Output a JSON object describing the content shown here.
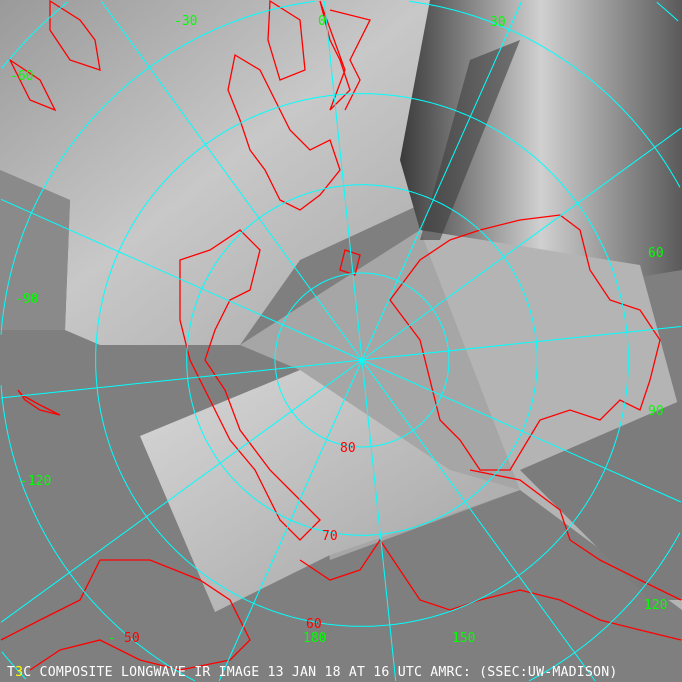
{
  "caption": {
    "prefix": "T",
    "marker": "3",
    "rest": "C COMPOSITE LONGWAVE IR IMAGE 13 JAN 18 AT 16 UTC AMRC: (SSEC:UW-MADISON)"
  },
  "grid": {
    "latitudes": [
      40,
      50,
      60,
      70,
      80
    ],
    "latitude_labels": [
      "50",
      "60",
      "70",
      "80"
    ],
    "longitudes": [
      0,
      30,
      60,
      90,
      120,
      150,
      180,
      -150,
      -120,
      -90,
      -60,
      -30
    ],
    "longitude_labels": [
      "-30",
      "0",
      "30",
      "60",
      "90",
      "120",
      "150",
      "180",
      "-",
      "-120",
      "-90",
      "-60"
    ]
  },
  "colors": {
    "background": "#7f7f7f",
    "graticule": "#00ffff",
    "coastline": "#ff0000",
    "longitude_label": "#00ff00",
    "latitude_label": "#ff0000",
    "caption": "#ffffff",
    "marker": "#ffff00"
  }
}
